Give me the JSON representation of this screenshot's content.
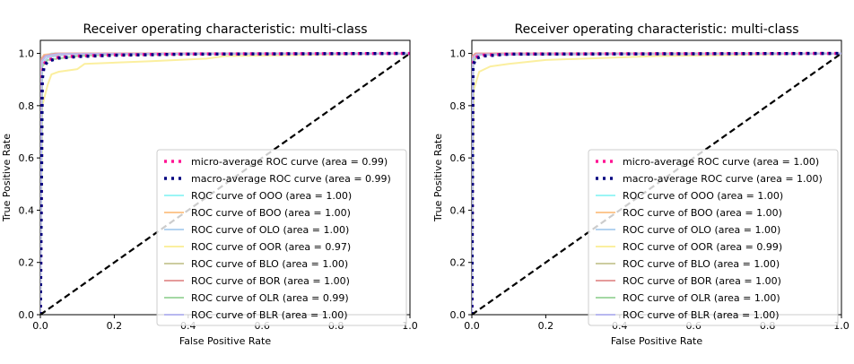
{
  "chart_data": [
    {
      "type": "line",
      "title": "Receiver operating characteristic: multi-class",
      "xlabel": "False Positive Rate",
      "ylabel": "True Positive Rate",
      "xlim": [
        0.0,
        1.0
      ],
      "ylim": [
        0.0,
        1.05
      ],
      "xticks": [
        "0.0",
        "0.2",
        "0.4",
        "0.6",
        "0.8",
        "1.0"
      ],
      "yticks": [
        "0.0",
        "0.2",
        "0.4",
        "0.6",
        "0.8",
        "1.0"
      ],
      "legend_position": "lower-right",
      "diagonal": {
        "color": "#000000",
        "style": "dashed",
        "x": [
          0,
          1
        ],
        "y": [
          0,
          1
        ]
      },
      "series": [
        {
          "name": "micro-average ROC curve (area = 0.99)",
          "color": "#ff1493",
          "style": "dotted",
          "x": [
            0,
            0.005,
            0.01,
            0.02,
            0.05,
            0.1,
            0.2,
            0.4,
            1.0
          ],
          "y": [
            0,
            0.92,
            0.96,
            0.975,
            0.985,
            0.99,
            0.994,
            0.998,
            1.0
          ]
        },
        {
          "name": "macro-average ROC curve (area = 0.99)",
          "color": "#000080",
          "style": "dotted",
          "x": [
            0,
            0.005,
            0.01,
            0.02,
            0.05,
            0.1,
            0.2,
            0.4,
            1.0
          ],
          "y": [
            0,
            0.9,
            0.95,
            0.97,
            0.982,
            0.988,
            0.993,
            0.997,
            1.0
          ]
        },
        {
          "name": "ROC curve of OOO (area = 1.00)",
          "color": "#9bf5f5",
          "style": "solid",
          "x": [
            0,
            0.003,
            0.01,
            0.03,
            1.0
          ],
          "y": [
            0,
            0.97,
            0.99,
            1.0,
            1.0
          ]
        },
        {
          "name": "ROC curve of BOO (area = 1.00)",
          "color": "#fcc791",
          "style": "solid",
          "x": [
            0,
            0.003,
            0.01,
            0.05,
            1.0
          ],
          "y": [
            0,
            0.98,
            0.995,
            1.0,
            1.0
          ]
        },
        {
          "name": "ROC curve of OLO (area = 1.00)",
          "color": "#b3d3f0",
          "style": "solid",
          "x": [
            0,
            0.005,
            0.02,
            0.08,
            1.0
          ],
          "y": [
            0,
            0.96,
            0.985,
            0.998,
            1.0
          ]
        },
        {
          "name": "ROC curve of OOR (area = 0.97)",
          "color": "#fbef9f",
          "style": "solid",
          "x": [
            0,
            0.005,
            0.02,
            0.03,
            0.05,
            0.1,
            0.12,
            0.3,
            0.45,
            0.5,
            1.0
          ],
          "y": [
            0,
            0.8,
            0.88,
            0.92,
            0.93,
            0.94,
            0.96,
            0.97,
            0.98,
            0.99,
            1.0
          ]
        },
        {
          "name": "ROC curve of BLO (area = 1.00)",
          "color": "#cccca0",
          "style": "solid",
          "x": [
            0,
            0.004,
            0.015,
            0.06,
            1.0
          ],
          "y": [
            0,
            0.97,
            0.99,
            0.998,
            1.0
          ]
        },
        {
          "name": "ROC curve of BOR (area = 1.00)",
          "color": "#e59b9b",
          "style": "solid",
          "x": [
            0,
            0.003,
            0.01,
            0.04,
            1.0
          ],
          "y": [
            0,
            0.975,
            0.99,
            1.0,
            1.0
          ]
        },
        {
          "name": "ROC curve of OLR (area = 0.99)",
          "color": "#a4d8a4",
          "style": "solid",
          "x": [
            0,
            0.005,
            0.02,
            0.1,
            0.2,
            1.0
          ],
          "y": [
            0,
            0.95,
            0.975,
            0.99,
            0.996,
            1.0
          ]
        },
        {
          "name": "ROC curve of BLR (area = 1.00)",
          "color": "#b8b8f0",
          "style": "solid",
          "x": [
            0,
            0.004,
            0.015,
            0.05,
            1.0
          ],
          "y": [
            0,
            0.97,
            0.99,
            0.998,
            1.0
          ]
        }
      ]
    },
    {
      "type": "line",
      "title": "Receiver operating characteristic: multi-class",
      "xlabel": "False Positive Rate",
      "ylabel": "True Positive Rate",
      "xlim": [
        0.0,
        1.0
      ],
      "ylim": [
        0.0,
        1.05
      ],
      "xticks": [
        "0.0",
        "0.2",
        "0.4",
        "0.6",
        "0.8",
        "1.0"
      ],
      "yticks": [
        "0.0",
        "0.2",
        "0.4",
        "0.6",
        "0.8",
        "1.0"
      ],
      "legend_position": "lower-right",
      "diagonal": {
        "color": "#000000",
        "style": "dashed",
        "x": [
          0,
          1
        ],
        "y": [
          0,
          1
        ]
      },
      "series": [
        {
          "name": "micro-average ROC curve (area = 1.00)",
          "color": "#ff1493",
          "style": "dotted",
          "x": [
            0,
            0.003,
            0.01,
            0.03,
            0.1,
            1.0
          ],
          "y": [
            0,
            0.96,
            0.985,
            0.993,
            0.998,
            1.0
          ]
        },
        {
          "name": "macro-average ROC curve (area = 1.00)",
          "color": "#000080",
          "style": "dotted",
          "x": [
            0,
            0.003,
            0.01,
            0.03,
            0.1,
            1.0
          ],
          "y": [
            0,
            0.95,
            0.98,
            0.99,
            0.997,
            1.0
          ]
        },
        {
          "name": "ROC curve of OOO (area = 1.00)",
          "color": "#9bf5f5",
          "style": "solid",
          "x": [
            0,
            0.002,
            0.01,
            1.0
          ],
          "y": [
            0,
            0.99,
            1.0,
            1.0
          ]
        },
        {
          "name": "ROC curve of BOO (area = 1.00)",
          "color": "#fcc791",
          "style": "solid",
          "x": [
            0,
            0.002,
            0.01,
            1.0
          ],
          "y": [
            0,
            0.99,
            1.0,
            1.0
          ]
        },
        {
          "name": "ROC curve of OLO (area = 1.00)",
          "color": "#b3d3f0",
          "style": "solid",
          "x": [
            0,
            0.003,
            0.02,
            1.0
          ],
          "y": [
            0,
            0.985,
            0.998,
            1.0
          ]
        },
        {
          "name": "ROC curve of OOR (area = 0.99)",
          "color": "#fbef9f",
          "style": "solid",
          "x": [
            0,
            0.005,
            0.02,
            0.05,
            0.1,
            0.2,
            0.5,
            1.0
          ],
          "y": [
            0,
            0.86,
            0.93,
            0.95,
            0.96,
            0.975,
            0.99,
            1.0
          ]
        },
        {
          "name": "ROC curve of BLO (area = 1.00)",
          "color": "#cccca0",
          "style": "solid",
          "x": [
            0,
            0.003,
            0.015,
            1.0
          ],
          "y": [
            0,
            0.98,
            0.995,
            1.0
          ]
        },
        {
          "name": "ROC curve of BOR (area = 1.00)",
          "color": "#e59b9b",
          "style": "solid",
          "x": [
            0,
            0.002,
            0.01,
            1.0
          ],
          "y": [
            0,
            0.99,
            1.0,
            1.0
          ]
        },
        {
          "name": "ROC curve of OLR (area = 1.00)",
          "color": "#a4d8a4",
          "style": "solid",
          "x": [
            0,
            0.004,
            0.02,
            1.0
          ],
          "y": [
            0,
            0.97,
            0.995,
            1.0
          ]
        },
        {
          "name": "ROC curve of BLR (area = 1.00)",
          "color": "#b8b8f0",
          "style": "solid",
          "x": [
            0,
            0.003,
            0.015,
            1.0
          ],
          "y": [
            0,
            0.98,
            0.996,
            1.0
          ]
        }
      ]
    }
  ]
}
